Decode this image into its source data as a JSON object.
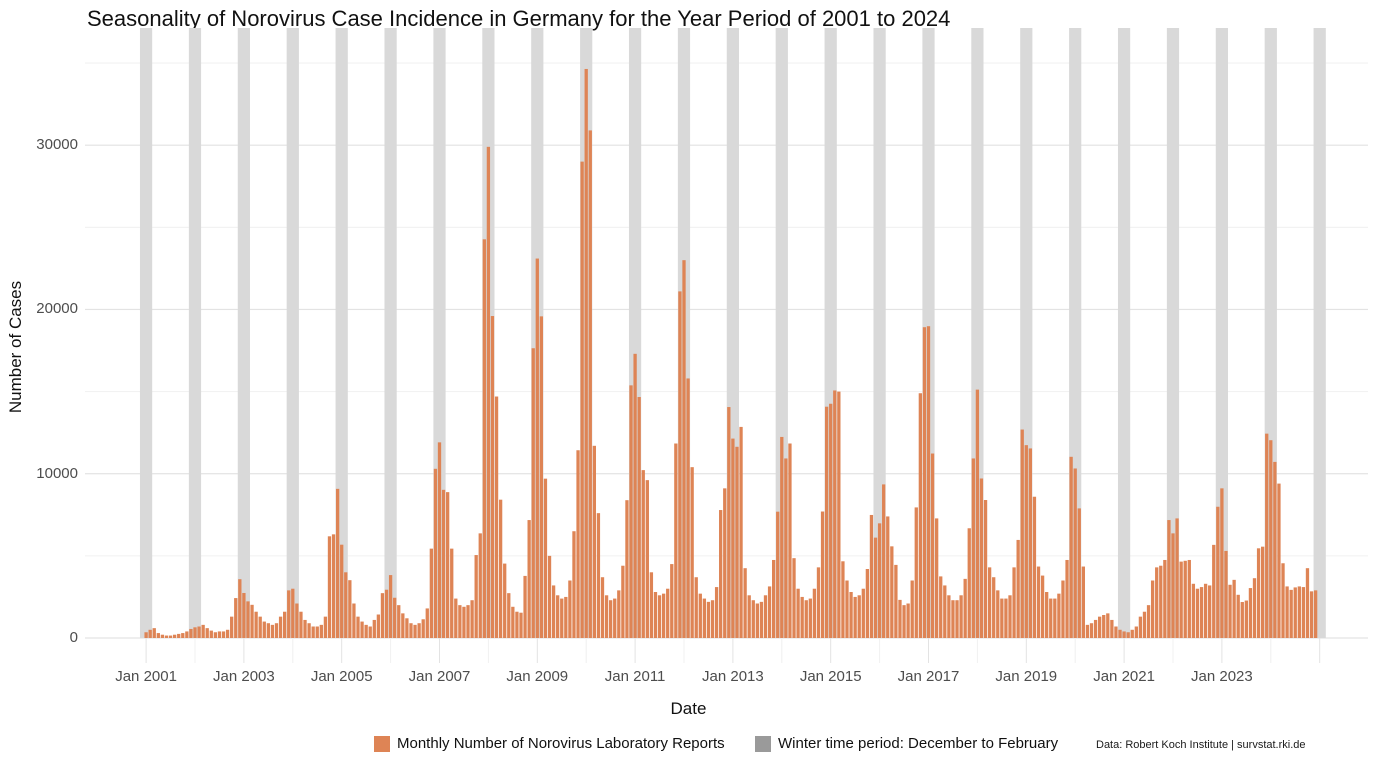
{
  "title": "Seasonality of Norovirus Case Incidence in Germany for the Year Period of 2001 to 2024",
  "y_axis": {
    "label": "Number of Cases",
    "tick_labels": [
      "0",
      "10000",
      "20000",
      "30000"
    ],
    "tick_values": [
      0,
      10000,
      20000,
      30000
    ],
    "minor_grid_values": [
      5000,
      15000,
      25000,
      35000
    ]
  },
  "x_axis": {
    "label": "Date",
    "tick_labels": [
      "Jan 2001",
      "Jan 2003",
      "Jan 2005",
      "Jan 2007",
      "Jan 2009",
      "Jan 2011",
      "Jan 2013",
      "Jan 2015",
      "Jan 2017",
      "Jan 2019",
      "Jan 2021",
      "Jan 2023"
    ],
    "tick_years": [
      2001,
      2003,
      2005,
      2007,
      2009,
      2011,
      2013,
      2015,
      2017,
      2019,
      2021,
      2023
    ]
  },
  "legend": {
    "cases_label": "Monthly Number of Norovirus Laboratory Reports",
    "winter_label": "Winter time period: December to February"
  },
  "attribution": "Data: Robert Koch Institute | survstat.rki.de",
  "colors": {
    "bar": "#DE8455",
    "winter_band": "#D9D9D9",
    "legend_winter_swatch": "#9A9A9A",
    "grid_major": "#E3E3E3",
    "grid_minor": "#F0F0F0",
    "axis_text": "#4D4D4D",
    "title_text": "#111111"
  },
  "chart_data": {
    "type": "bar",
    "title": "Seasonality of Norovirus Case Incidence in Germany for the Year Period of 2001 to 2024",
    "xlabel": "Date",
    "ylabel": "Number of Cases",
    "x_start": "2001-01",
    "x_end": "2024-12",
    "ylim": [
      0,
      36800
    ],
    "grid": true,
    "legend_position": "bottom",
    "winter_bands": {
      "rule": "December through February shaded gray each season",
      "first": "Dec 2000 - Feb 2001",
      "last": "Dec 2024 - Feb 2025",
      "count": 25
    },
    "series": [
      {
        "name": "Monthly Number of Norovirus Laboratory Reports",
        "monthly_values_by_year": {
          "2001": [
            350,
            500,
            600,
            300,
            200,
            150,
            150,
            200,
            250,
            300,
            400,
            550
          ],
          "2002": [
            650,
            700,
            800,
            600,
            450,
            350,
            400,
            400,
            500,
            1300,
            2430,
            3580
          ],
          "2003": [
            2740,
            2230,
            2020,
            1600,
            1300,
            1000,
            900,
            800,
            900,
            1300,
            1600,
            2900
          ],
          "2004": [
            3000,
            2100,
            1600,
            1100,
            900,
            700,
            700,
            800,
            1300,
            6190,
            6310,
            9080
          ],
          "2005": [
            5680,
            4000,
            3520,
            2100,
            1300,
            1000,
            800,
            700,
            1100,
            1430,
            2730,
            2940
          ],
          "2006": [
            3830,
            2450,
            2000,
            1500,
            1200,
            900,
            800,
            900,
            1140,
            1800,
            5440,
            10300
          ],
          "2007": [
            11910,
            9020,
            8880,
            5440,
            2400,
            2000,
            1900,
            2000,
            2300,
            5050,
            6370,
            24270
          ],
          "2008": [
            29900,
            19600,
            14700,
            8420,
            4530,
            2730,
            1900,
            1600,
            1540,
            3780,
            7180,
            17640
          ],
          "2009": [
            23100,
            19580,
            9700,
            5000,
            3200,
            2600,
            2400,
            2500,
            3500,
            6500,
            11430,
            29000
          ],
          "2010": [
            34640,
            30900,
            11700,
            7600,
            3700,
            2600,
            2300,
            2400,
            2900,
            4400,
            8390,
            15380
          ],
          "2011": [
            17300,
            14670,
            10220,
            9610,
            4000,
            2800,
            2600,
            2700,
            3000,
            4500,
            11840,
            21100
          ],
          "2012": [
            23000,
            15800,
            10400,
            3700,
            2700,
            2400,
            2200,
            2300,
            3100,
            7790,
            9110,
            14060
          ],
          "2013": [
            12140,
            11640,
            12850,
            4250,
            2600,
            2300,
            2100,
            2200,
            2600,
            3140,
            4750,
            7690
          ],
          "2014": [
            12240,
            10930,
            11840,
            4860,
            3000,
            2500,
            2300,
            2400,
            3000,
            4300,
            7700,
            14080
          ],
          "2015": [
            14260,
            15070,
            15000,
            4670,
            3500,
            2800,
            2500,
            2600,
            3000,
            4200,
            7490,
            6110
          ],
          "2016": [
            6980,
            9350,
            7400,
            5580,
            4450,
            2320,
            2000,
            2100,
            3500,
            7950,
            14900,
            18920
          ],
          "2017": [
            18980,
            11230,
            7280,
            3750,
            3200,
            2600,
            2300,
            2300,
            2600,
            3600,
            6680,
            10930
          ],
          "2018": [
            15120,
            9710,
            8400,
            4300,
            3700,
            2900,
            2400,
            2400,
            2600,
            4300,
            5970,
            12690
          ],
          "2019": [
            11740,
            11540,
            8600,
            4350,
            3800,
            2800,
            2400,
            2400,
            2700,
            3500,
            4750,
            11030
          ],
          "2020": [
            10320,
            7890,
            4350,
            800,
            900,
            1100,
            1300,
            1400,
            1500,
            1100,
            700,
            500
          ],
          "2021": [
            400,
            350,
            500,
            700,
            1300,
            1600,
            2000,
            3500,
            4300,
            4400,
            4750,
            7180
          ],
          "2022": [
            6370,
            7280,
            4650,
            4700,
            4750,
            3300,
            3000,
            3100,
            3300,
            3200,
            5670,
            7990
          ],
          "2023": [
            9110,
            5300,
            3240,
            3540,
            2630,
            2190,
            2280,
            3040,
            3640,
            5460,
            5560,
            12440
          ],
          "2024": [
            12040,
            10720,
            9400,
            4550,
            3140,
            2930,
            3080,
            3140,
            3100,
            4250,
            2840,
            2900
          ]
        }
      }
    ]
  }
}
